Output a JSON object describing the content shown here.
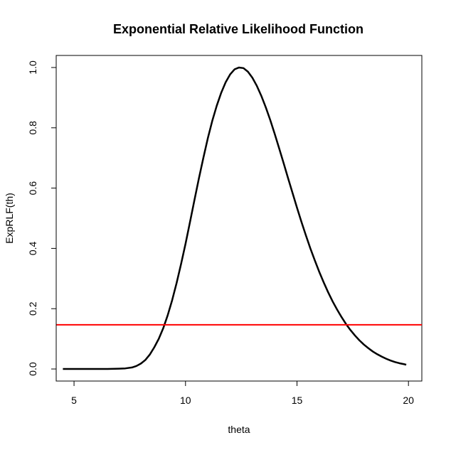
{
  "chart_data": {
    "type": "line",
    "title": "Exponential Relative Likelihood Function",
    "xlabel": "theta",
    "ylabel": "ExpRLF(th)",
    "xlim": [
      4.2,
      20.6
    ],
    "ylim": [
      -0.04,
      1.04
    ],
    "xticks": [
      5,
      10,
      15,
      20
    ],
    "yticks": [
      0.0,
      0.2,
      0.4,
      0.6,
      0.8,
      1.0
    ],
    "xtick_labels": [
      "5",
      "10",
      "15",
      "20"
    ],
    "ytick_labels": [
      "0.0",
      "0.2",
      "0.4",
      "0.6",
      "0.8",
      "1.0"
    ],
    "grid": false,
    "series": [
      {
        "color": "#000000",
        "x": [
          4.5,
          5.0,
          5.5,
          6.0,
          6.5,
          7.0,
          7.3,
          7.6,
          7.8,
          8.0,
          8.2,
          8.4,
          8.6,
          8.8,
          9.0,
          9.2,
          9.4,
          9.6,
          9.8,
          10.0,
          10.2,
          10.4,
          10.6,
          10.8,
          11.0,
          11.2,
          11.4,
          11.6,
          11.8,
          12.0,
          12.2,
          12.4,
          12.6,
          12.8,
          13.0,
          13.2,
          13.4,
          13.6,
          13.8,
          14.0,
          14.2,
          14.4,
          14.6,
          14.8,
          15.0,
          15.2,
          15.4,
          15.6,
          15.8,
          16.0,
          16.2,
          16.4,
          16.6,
          16.8,
          17.0,
          17.2,
          17.4,
          17.6,
          17.8,
          18.0,
          18.2,
          18.4,
          18.6,
          18.8,
          19.0,
          19.2,
          19.4,
          19.6,
          19.8,
          19.9
        ],
        "y": [
          0.0,
          0.0,
          0.0,
          0.0,
          0.0,
          0.001,
          0.002,
          0.005,
          0.01,
          0.018,
          0.03,
          0.048,
          0.072,
          0.1,
          0.135,
          0.178,
          0.228,
          0.285,
          0.348,
          0.415,
          0.487,
          0.56,
          0.632,
          0.7,
          0.765,
          0.823,
          0.873,
          0.916,
          0.951,
          0.977,
          0.994,
          1.0,
          0.998,
          0.986,
          0.966,
          0.939,
          0.906,
          0.868,
          0.826,
          0.78,
          0.732,
          0.683,
          0.633,
          0.584,
          0.535,
          0.488,
          0.443,
          0.4,
          0.36,
          0.322,
          0.287,
          0.254,
          0.224,
          0.197,
          0.172,
          0.149,
          0.129,
          0.111,
          0.095,
          0.081,
          0.069,
          0.058,
          0.049,
          0.041,
          0.034,
          0.028,
          0.023,
          0.019,
          0.016,
          0.014
        ]
      },
      {
        "color": "#ff0000",
        "x": [
          4.2,
          20.6
        ],
        "y": [
          0.1465,
          0.1465
        ]
      }
    ]
  }
}
